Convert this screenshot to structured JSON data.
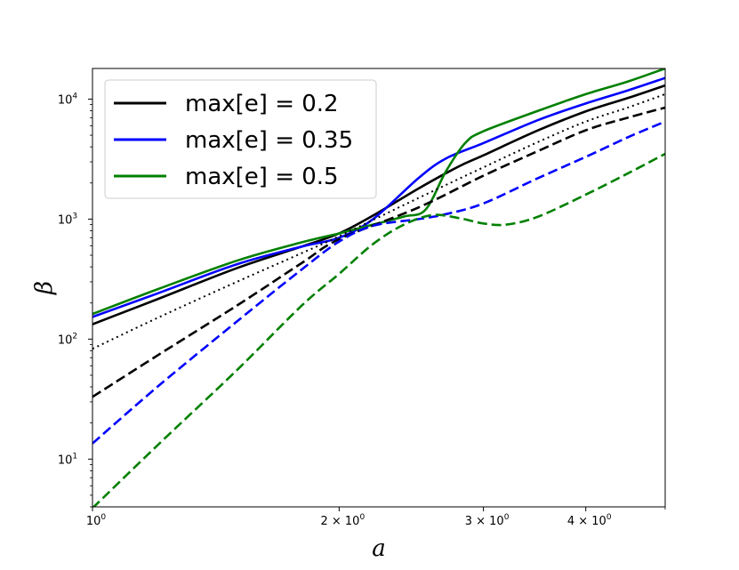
{
  "chart_data": {
    "type": "line",
    "xlabel": "a",
    "ylabel": "β",
    "xscale": "log",
    "yscale": "log",
    "xlim": [
      1.0,
      5.0
    ],
    "ylim": [
      4.0,
      18000
    ],
    "grid": false,
    "legend_position": "top-left",
    "xticks": [
      {
        "value": 1,
        "label": "10",
        "sup": "0"
      },
      {
        "value": 2,
        "label": "2 × 10",
        "sup": "0"
      },
      {
        "value": 3,
        "label": "3 × 10",
        "sup": "0"
      },
      {
        "value": 4,
        "label": "4 × 10",
        "sup": "0"
      }
    ],
    "yticks": [
      {
        "value": 10,
        "label": "10",
        "sup": "1"
      },
      {
        "value": 100,
        "label": "10",
        "sup": "2"
      },
      {
        "value": 1000,
        "label": "10",
        "sup": "3"
      },
      {
        "value": 10000,
        "label": "10",
        "sup": "4"
      }
    ],
    "legend": [
      {
        "label": "max[e] = 0.2",
        "color": "#000000"
      },
      {
        "label": "max[e] = 0.35",
        "color": "#0000ff"
      },
      {
        "label": "max[e] = 0.5",
        "color": "#008000"
      }
    ],
    "series": [
      {
        "color": "#000000",
        "style": "solid",
        "points": [
          [
            1.0,
            133
          ],
          [
            1.2,
            215
          ],
          [
            1.5,
            390
          ],
          [
            1.8,
            590
          ],
          [
            2.0,
            760
          ],
          [
            2.2,
            1070
          ],
          [
            2.5,
            1800
          ],
          [
            2.8,
            2750
          ],
          [
            3.0,
            3400
          ],
          [
            3.5,
            5500
          ],
          [
            4.0,
            7900
          ],
          [
            4.5,
            10200
          ],
          [
            5.0,
            13000
          ]
        ]
      },
      {
        "color": "#0000ff",
        "style": "solid",
        "points": [
          [
            1.0,
            153
          ],
          [
            1.2,
            240
          ],
          [
            1.5,
            420
          ],
          [
            1.8,
            590
          ],
          [
            2.0,
            700
          ],
          [
            2.2,
            1000
          ],
          [
            2.5,
            2200
          ],
          [
            2.7,
            3200
          ],
          [
            3.0,
            4300
          ],
          [
            3.5,
            6700
          ],
          [
            4.0,
            9200
          ],
          [
            4.5,
            11800
          ],
          [
            5.0,
            15000
          ]
        ]
      },
      {
        "color": "#008000",
        "style": "solid",
        "points": [
          [
            1.0,
            162
          ],
          [
            1.2,
            260
          ],
          [
            1.5,
            450
          ],
          [
            1.8,
            640
          ],
          [
            2.0,
            760
          ],
          [
            2.2,
            900
          ],
          [
            2.4,
            1050
          ],
          [
            2.55,
            1200
          ],
          [
            2.7,
            2500
          ],
          [
            2.85,
            4300
          ],
          [
            3.0,
            5400
          ],
          [
            3.5,
            8000
          ],
          [
            4.0,
            11000
          ],
          [
            4.5,
            14000
          ],
          [
            5.0,
            18000
          ]
        ]
      },
      {
        "color": "#000000",
        "style": "dotted",
        "points": [
          [
            1.0,
            83
          ],
          [
            1.2,
            150
          ],
          [
            1.5,
            300
          ],
          [
            1.8,
            520
          ],
          [
            2.0,
            720
          ],
          [
            2.5,
            1500
          ],
          [
            3.0,
            2700
          ],
          [
            3.5,
            4400
          ],
          [
            4.0,
            6500
          ],
          [
            4.5,
            8500
          ],
          [
            5.0,
            11000
          ]
        ]
      },
      {
        "color": "#000000",
        "style": "dashed",
        "points": [
          [
            1.0,
            33
          ],
          [
            1.2,
            73
          ],
          [
            1.5,
            190
          ],
          [
            1.8,
            430
          ],
          [
            2.0,
            680
          ],
          [
            2.5,
            1250
          ],
          [
            3.0,
            2300
          ],
          [
            3.5,
            3700
          ],
          [
            4.0,
            5500
          ],
          [
            4.5,
            7000
          ],
          [
            5.0,
            8500
          ]
        ]
      },
      {
        "color": "#0000ff",
        "style": "dashed",
        "points": [
          [
            1.0,
            13.5
          ],
          [
            1.2,
            40
          ],
          [
            1.5,
            140
          ],
          [
            1.8,
            380
          ],
          [
            2.0,
            650
          ],
          [
            2.2,
            880
          ],
          [
            2.5,
            1000
          ],
          [
            2.7,
            1100
          ],
          [
            3.0,
            1350
          ],
          [
            3.5,
            2200
          ],
          [
            4.0,
            3300
          ],
          [
            4.5,
            4800
          ],
          [
            5.0,
            6500
          ]
        ]
      },
      {
        "color": "#008000",
        "style": "dashed",
        "points": [
          [
            1.0,
            3.9
          ],
          [
            1.2,
            13
          ],
          [
            1.5,
            55
          ],
          [
            1.8,
            190
          ],
          [
            2.0,
            350
          ],
          [
            2.2,
            620
          ],
          [
            2.4,
            900
          ],
          [
            2.6,
            1080
          ],
          [
            2.8,
            1020
          ],
          [
            3.0,
            920
          ],
          [
            3.2,
            900
          ],
          [
            3.5,
            1050
          ],
          [
            4.0,
            1600
          ],
          [
            4.5,
            2400
          ],
          [
            5.0,
            3500
          ]
        ]
      }
    ]
  }
}
